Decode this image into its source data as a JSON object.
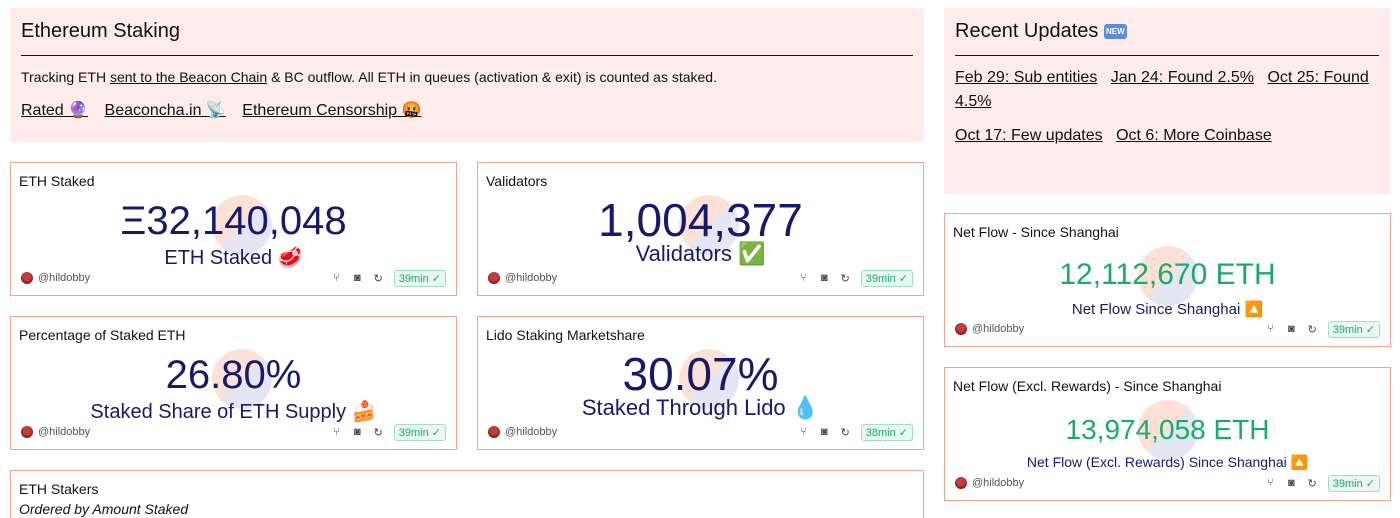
{
  "header": {
    "title": "Ethereum Staking",
    "description_pre": "Tracking ETH ",
    "description_link": "sent to the Beacon Chain",
    "description_post": " & BC outflow. All ETH in queues (activation & exit) is counted as staked.",
    "links": [
      "Rated 🔮",
      "Beaconcha.in 📡",
      "Ethereum Censorship 🤬"
    ]
  },
  "updates": {
    "title": "Recent Updates",
    "badge": "NEW",
    "links_row1": [
      "Feb 29: Sub entities",
      "Jan 24: Found 2.5%",
      "Oct 25: Found 4.5%"
    ],
    "links_row2": [
      "Oct 17: Few updates",
      "Oct 6: More Coinbase"
    ]
  },
  "icons": {
    "fork": "fork-icon",
    "camera": "camera-icon",
    "refresh": "refresh-icon",
    "check": "check-circle-icon"
  },
  "cards": {
    "eth_staked": {
      "title": "ETH Staked",
      "value": "Ξ32,140,048",
      "label": "ETH Staked 🥩",
      "user": "@hildobby",
      "time": "39min ✓"
    },
    "validators": {
      "title": "Validators",
      "value": "1,004,377",
      "label": "Validators ✅",
      "user": "@hildobby",
      "time": "39min ✓"
    },
    "pct_staked": {
      "title": "Percentage of Staked ETH",
      "value": "26.80%",
      "label": "Staked Share of ETH Supply 🍰",
      "user": "@hildobby",
      "time": "39min ✓"
    },
    "lido": {
      "title": "Lido Staking Marketshare",
      "value": "30.07%",
      "label": "Staked Through Lido 💧",
      "user": "@hildobby",
      "time": "38min ✓"
    },
    "net_flow": {
      "title": "Net Flow - Since Shanghai",
      "value": "12,112,670 ETH",
      "label": "Net Flow Since Shanghai 🔼",
      "user": "@hildobby",
      "time": "39min ✓"
    },
    "net_flow_ex": {
      "title": "Net Flow (Excl. Rewards) - Since Shanghai",
      "value": "13,974,058 ETH",
      "label": "Net Flow (Excl. Rewards) Since Shanghai 🔼",
      "user": "@hildobby",
      "time": "39min ✓"
    },
    "stakers": {
      "title": "ETH Stakers",
      "subtitle": "Ordered by Amount Staked"
    }
  },
  "colors": {
    "accent_navy": "#151a6b",
    "positive_green": "#1aaa6c",
    "panel_pink": "#fdecea",
    "card_border": "#f2a48e"
  }
}
